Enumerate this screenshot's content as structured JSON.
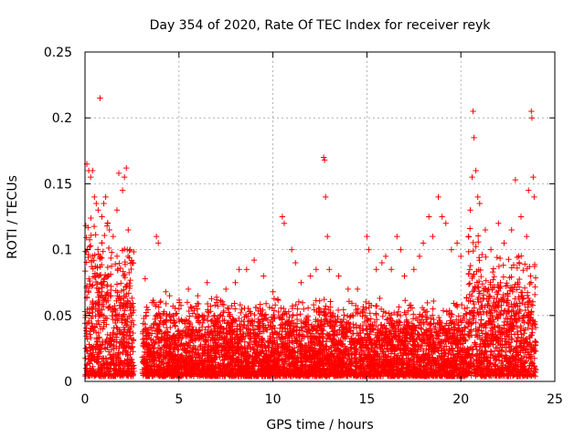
{
  "chart_data": {
    "type": "scatter",
    "title": "Day 354 of 2020, Rate Of TEC Index for receiver reyk",
    "xlabel": "GPS time / hours",
    "ylabel": "ROTI / TECUs",
    "xlim": [
      0,
      25
    ],
    "ylim": [
      0,
      0.25
    ],
    "x_ticks": [
      "0",
      "5",
      "10",
      "15",
      "20",
      "25"
    ],
    "y_ticks": [
      "0",
      "0.05",
      "0.1",
      "0.15",
      "0.2",
      "0.25"
    ],
    "grid": true,
    "legend": "none",
    "marker": "plus",
    "color": "#ff0000",
    "points": [
      [
        0.1,
        0.165
      ],
      [
        0.2,
        0.16
      ],
      [
        0.3,
        0.155
      ],
      [
        0.4,
        0.16
      ],
      [
        0.5,
        0.14
      ],
      [
        0.6,
        0.135
      ],
      [
        0.7,
        0.13
      ],
      [
        0.8,
        0.215
      ],
      [
        0.9,
        0.125
      ],
      [
        1.0,
        0.135
      ],
      [
        1.1,
        0.14
      ],
      [
        1.2,
        0.12
      ],
      [
        1.3,
        0.115
      ],
      [
        1.5,
        0.11
      ],
      [
        1.7,
        0.13
      ],
      [
        1.8,
        0.158
      ],
      [
        2.0,
        0.145
      ],
      [
        2.1,
        0.155
      ],
      [
        2.2,
        0.162
      ],
      [
        2.3,
        0.115
      ],
      [
        2.4,
        0.1
      ],
      [
        2.5,
        0.09
      ],
      [
        3.2,
        0.078
      ],
      [
        3.8,
        0.11
      ],
      [
        3.9,
        0.105
      ],
      [
        4.0,
        0.06
      ],
      [
        4.3,
        0.068
      ],
      [
        4.5,
        0.065
      ],
      [
        5.0,
        0.055
      ],
      [
        5.5,
        0.07
      ],
      [
        6.0,
        0.065
      ],
      [
        6.5,
        0.075
      ],
      [
        7.0,
        0.06
      ],
      [
        7.5,
        0.07
      ],
      [
        8.0,
        0.075
      ],
      [
        8.2,
        0.085
      ],
      [
        8.6,
        0.085
      ],
      [
        9.0,
        0.092
      ],
      [
        9.5,
        0.08
      ],
      [
        10.0,
        0.068
      ],
      [
        10.5,
        0.125
      ],
      [
        10.6,
        0.12
      ],
      [
        11.0,
        0.1
      ],
      [
        11.2,
        0.09
      ],
      [
        11.5,
        0.075
      ],
      [
        12.0,
        0.08
      ],
      [
        12.3,
        0.085
      ],
      [
        12.7,
        0.17
      ],
      [
        12.75,
        0.168
      ],
      [
        12.8,
        0.14
      ],
      [
        12.9,
        0.11
      ],
      [
        13.0,
        0.085
      ],
      [
        13.5,
        0.08
      ],
      [
        14.0,
        0.07
      ],
      [
        14.5,
        0.07
      ],
      [
        15.0,
        0.11
      ],
      [
        15.1,
        0.1
      ],
      [
        15.5,
        0.085
      ],
      [
        15.8,
        0.09
      ],
      [
        16.0,
        0.095
      ],
      [
        16.3,
        0.085
      ],
      [
        16.6,
        0.11
      ],
      [
        16.8,
        0.1
      ],
      [
        17.0,
        0.08
      ],
      [
        17.5,
        0.085
      ],
      [
        17.8,
        0.095
      ],
      [
        18.0,
        0.105
      ],
      [
        18.3,
        0.125
      ],
      [
        18.5,
        0.11
      ],
      [
        18.8,
        0.14
      ],
      [
        19.0,
        0.125
      ],
      [
        19.2,
        0.12
      ],
      [
        19.5,
        0.1
      ],
      [
        19.8,
        0.105
      ],
      [
        20.0,
        0.095
      ],
      [
        20.4,
        0.11
      ],
      [
        20.5,
        0.13
      ],
      [
        20.6,
        0.155
      ],
      [
        20.65,
        0.205
      ],
      [
        20.7,
        0.185
      ],
      [
        20.8,
        0.16
      ],
      [
        20.9,
        0.14
      ],
      [
        21.0,
        0.135
      ],
      [
        21.3,
        0.115
      ],
      [
        21.6,
        0.1
      ],
      [
        22.0,
        0.12
      ],
      [
        22.3,
        0.105
      ],
      [
        22.7,
        0.115
      ],
      [
        22.9,
        0.153
      ],
      [
        23.2,
        0.125
      ],
      [
        23.5,
        0.11
      ],
      [
        23.6,
        0.145
      ],
      [
        23.75,
        0.205
      ],
      [
        23.78,
        0.2
      ],
      [
        23.85,
        0.155
      ],
      [
        23.9,
        0.14
      ]
    ]
  }
}
